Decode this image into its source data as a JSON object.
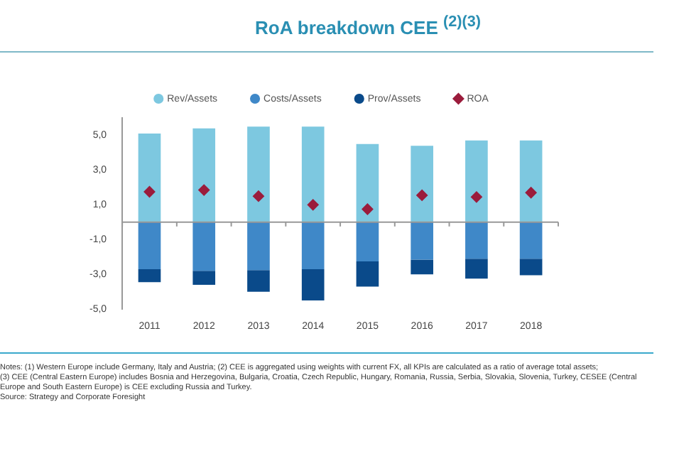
{
  "chart_data": {
    "type": "bar",
    "title": "RoA breakdown CEE $^{(2)(3)}$",
    "categories": [
      "2011",
      "2012",
      "2013",
      "2014",
      "2015",
      "2016",
      "2017",
      "2018"
    ],
    "series": [
      {
        "name": "Rev/Assets",
        "color": "#7dc8e0",
        "values": [
          5.1,
          5.4,
          5.5,
          5.5,
          4.5,
          4.4,
          4.7,
          4.7
        ]
      },
      {
        "name": "Costs/Assets",
        "color": "#3f88c8",
        "values": [
          -2.7,
          -2.8,
          -2.75,
          -2.7,
          -2.25,
          -2.15,
          -2.1,
          -2.1
        ]
      },
      {
        "name": "Prov/Assets",
        "color": "#0a4a8a",
        "values": [
          -0.75,
          -0.8,
          -1.25,
          -1.8,
          -1.45,
          -0.85,
          -1.15,
          -0.95
        ]
      },
      {
        "name": "ROA",
        "type": "scatter",
        "color": "#9b1c3c",
        "marker": "diamond",
        "values": [
          1.75,
          1.85,
          1.5,
          1.0,
          0.75,
          1.55,
          1.45,
          1.7
        ]
      }
    ],
    "stacked": true,
    "ylim": [
      -5,
      6
    ],
    "yticks": [
      {
        "value": -5,
        "label": "-5,0"
      },
      {
        "value": -3,
        "label": "-3,0"
      },
      {
        "value": -1,
        "label": "-1,0"
      },
      {
        "value": 1,
        "label": "1,0"
      },
      {
        "value": 3,
        "label": "3,0"
      },
      {
        "value": 5,
        "label": "5,0"
      }
    ],
    "grid": false,
    "legend": "top",
    "annotations": [
      "Notes: (1) Western Europe include Germany, Italy and Austria; (2) CEE is aggregated using weights with current FX, all KPIs are calculated as a ratio of average total assets;",
      "(3) CEE (Central Eastern Europe) includes Bosnia and Herzegovina, Bulgaria, Croatia, Czech Republic, Hungary, Romania, Russia, Serbia, Slovakia, Slovenia, Turkey, CESEE (Central Europe and South Eastern Europe) is CEE excluding Russia and Turkey.",
      "Source: Strategy and Corporate Foresight"
    ]
  }
}
